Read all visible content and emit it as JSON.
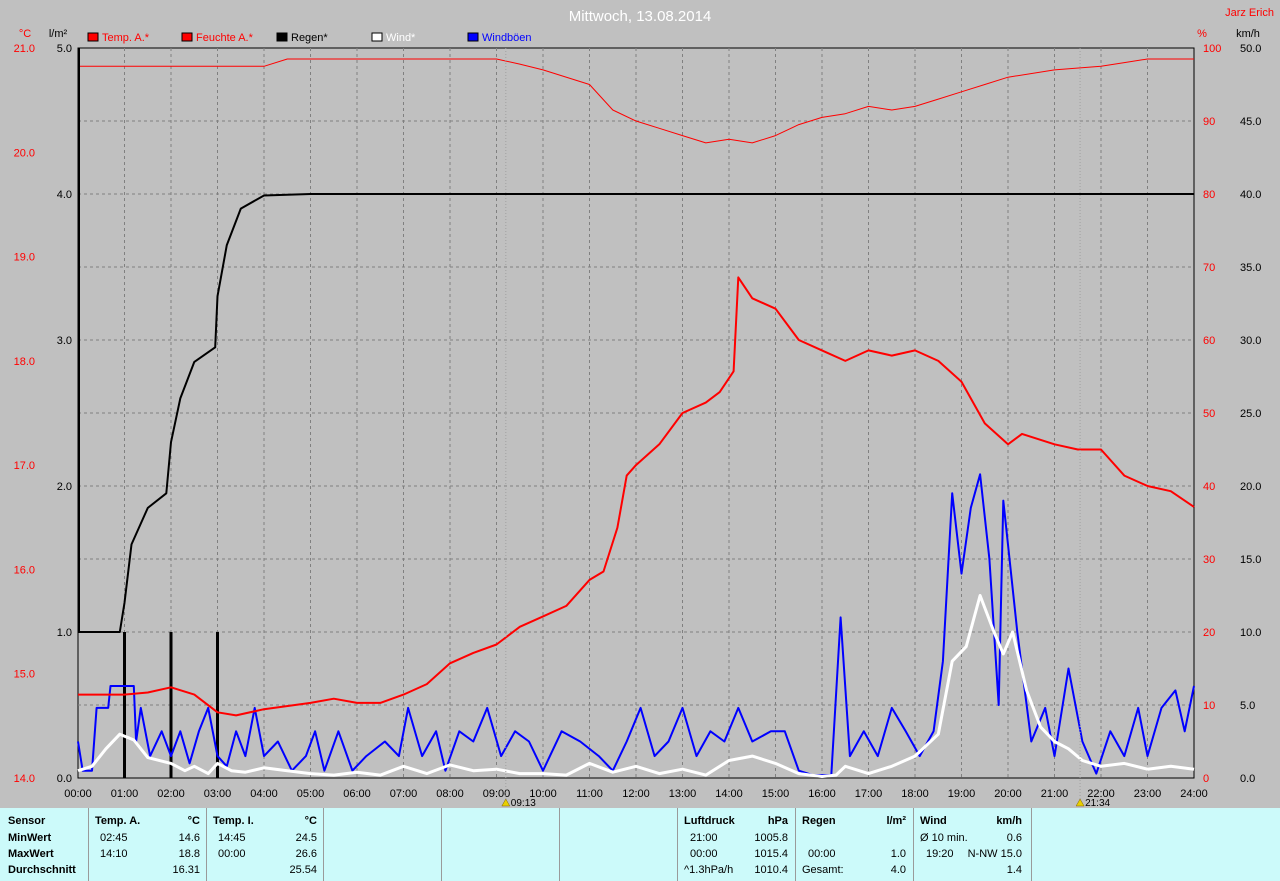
{
  "colors": {
    "background": "#c0c0c0",
    "temp": "#ff0000",
    "humidity": "#ff0000",
    "rain": "#000000",
    "wind": "#ffffff",
    "gust": "#0000ff",
    "grid": "#808080",
    "panel": "#ccfafa"
  },
  "chart_data": {
    "type": "line",
    "title": "Mittwoch, 13.08.2014",
    "author": "Jarz Erich",
    "xlim": [
      0,
      24
    ],
    "x_ticks": [
      "00:00",
      "01:00",
      "02:00",
      "03:00",
      "04:00",
      "05:00",
      "06:00",
      "07:00",
      "08:00",
      "09:00",
      "10:00",
      "11:00",
      "12:00",
      "13:00",
      "14:00",
      "15:00",
      "16:00",
      "17:00",
      "18:00",
      "19:00",
      "20:00",
      "21:00",
      "22:00",
      "23:00",
      "24:00"
    ],
    "markers": [
      {
        "hour": 9.2,
        "label": "09:13",
        "icon": "sunrise-icon"
      },
      {
        "hour": 21.55,
        "label": "21:34",
        "icon": "sunset-icon"
      }
    ],
    "axes": {
      "temp": {
        "unit": "°C",
        "range": [
          14.0,
          21.0
        ],
        "ticks": [
          "14.0",
          "15.0",
          "16.0",
          "17.0",
          "18.0",
          "19.0",
          "20.0",
          "21.0"
        ]
      },
      "rain": {
        "unit": "l/m²",
        "range": [
          0,
          5.0
        ],
        "ticks": [
          "0.0",
          "1.0",
          "2.0",
          "3.0",
          "4.0",
          "5.0"
        ]
      },
      "humidity": {
        "unit": "%",
        "range": [
          0,
          100
        ],
        "ticks": [
          "0",
          "10",
          "20",
          "30",
          "40",
          "50",
          "60",
          "70",
          "80",
          "90",
          "100"
        ]
      },
      "wind": {
        "unit": "km/h",
        "range": [
          0,
          50
        ],
        "ticks": [
          "0.0",
          "5.0",
          "10.0",
          "15.0",
          "20.0",
          "25.0",
          "30.0",
          "35.0",
          "40.0",
          "45.0",
          "50.0"
        ]
      }
    },
    "legend": [
      "Temp. A.*",
      "Feuchte A.*",
      "Regen*",
      "Wind*",
      "Windböen"
    ],
    "series": [
      {
        "name": "Temp. A.*",
        "axis": "temp",
        "points": [
          [
            0,
            14.8
          ],
          [
            1,
            14.8
          ],
          [
            1.5,
            14.82
          ],
          [
            2,
            14.87
          ],
          [
            2.5,
            14.8
          ],
          [
            3,
            14.63
          ],
          [
            3.4,
            14.6
          ],
          [
            4,
            14.66
          ],
          [
            5,
            14.72
          ],
          [
            5.5,
            14.76
          ],
          [
            6,
            14.72
          ],
          [
            6.5,
            14.72
          ],
          [
            7,
            14.8
          ],
          [
            7.5,
            14.9
          ],
          [
            8,
            15.1
          ],
          [
            8.5,
            15.2
          ],
          [
            9,
            15.28
          ],
          [
            9.5,
            15.45
          ],
          [
            10,
            15.55
          ],
          [
            10.5,
            15.65
          ],
          [
            11,
            15.9
          ],
          [
            11.3,
            15.98
          ],
          [
            11.6,
            16.4
          ],
          [
            11.8,
            16.9
          ],
          [
            12,
            17.0
          ],
          [
            12.5,
            17.2
          ],
          [
            13,
            17.5
          ],
          [
            13.5,
            17.6
          ],
          [
            13.8,
            17.7
          ],
          [
            14.1,
            17.9
          ],
          [
            14.2,
            18.8
          ],
          [
            14.5,
            18.6
          ],
          [
            15,
            18.5
          ],
          [
            15.5,
            18.2
          ],
          [
            16,
            18.1
          ],
          [
            16.5,
            18.0
          ],
          [
            17,
            18.1
          ],
          [
            17.5,
            18.05
          ],
          [
            18,
            18.1
          ],
          [
            18.5,
            18.0
          ],
          [
            19,
            17.8
          ],
          [
            19.5,
            17.4
          ],
          [
            20,
            17.2
          ],
          [
            20.3,
            17.3
          ],
          [
            21,
            17.2
          ],
          [
            21.5,
            17.15
          ],
          [
            22,
            17.15
          ],
          [
            22.5,
            16.9
          ],
          [
            23,
            16.8
          ],
          [
            23.5,
            16.75
          ],
          [
            24,
            16.6
          ]
        ]
      },
      {
        "name": "Feuchte A.*",
        "axis": "humidity",
        "points": [
          [
            0,
            97.5
          ],
          [
            1,
            97.5
          ],
          [
            2,
            97.5
          ],
          [
            3,
            97.5
          ],
          [
            4,
            97.5
          ],
          [
            4.5,
            98.5
          ],
          [
            5,
            98.5
          ],
          [
            9,
            98.5
          ],
          [
            9.5,
            97.8
          ],
          [
            10,
            97
          ],
          [
            11,
            95
          ],
          [
            11.5,
            91.5
          ],
          [
            12,
            90
          ],
          [
            12.5,
            89
          ],
          [
            13,
            88
          ],
          [
            13.5,
            87
          ],
          [
            14,
            87.5
          ],
          [
            14.5,
            87
          ],
          [
            15,
            88
          ],
          [
            15.5,
            89.5
          ],
          [
            16,
            90.5
          ],
          [
            16.5,
            91
          ],
          [
            17,
            92
          ],
          [
            17.5,
            91.5
          ],
          [
            18,
            92
          ],
          [
            18.5,
            93
          ],
          [
            19,
            94
          ],
          [
            19.5,
            95
          ],
          [
            20,
            96
          ],
          [
            21,
            97
          ],
          [
            22,
            97.5
          ],
          [
            22.5,
            98
          ],
          [
            23,
            98.5
          ],
          [
            24,
            98.5
          ]
        ]
      },
      {
        "name": "Regen*",
        "axis": "rain",
        "points": [
          [
            0,
            1.0
          ],
          [
            0.9,
            1.0
          ],
          [
            1.0,
            1.2
          ],
          [
            1.15,
            1.6
          ],
          [
            1.5,
            1.85
          ],
          [
            1.9,
            1.95
          ],
          [
            2.0,
            2.3
          ],
          [
            2.2,
            2.6
          ],
          [
            2.5,
            2.85
          ],
          [
            2.95,
            2.95
          ],
          [
            3.0,
            3.3
          ],
          [
            3.2,
            3.65
          ],
          [
            3.5,
            3.9
          ],
          [
            4,
            3.99
          ],
          [
            5,
            4.0
          ],
          [
            24,
            4.0
          ]
        ]
      },
      {
        "name": "Wind*",
        "axis": "wind",
        "points": [
          [
            0,
            0.5
          ],
          [
            0.3,
            0.8
          ],
          [
            0.6,
            2.0
          ],
          [
            0.9,
            3.0
          ],
          [
            1.2,
            2.6
          ],
          [
            1.5,
            1.4
          ],
          [
            2,
            1.0
          ],
          [
            2.3,
            0.5
          ],
          [
            2.5,
            0.8
          ],
          [
            2.8,
            0.3
          ],
          [
            3,
            1.0
          ],
          [
            3.3,
            0.5
          ],
          [
            3.6,
            0.4
          ],
          [
            4,
            0.7
          ],
          [
            4.5,
            0.5
          ],
          [
            5,
            0.3
          ],
          [
            5.5,
            0.2
          ],
          [
            6,
            0.4
          ],
          [
            6.5,
            0.2
          ],
          [
            7,
            0.8
          ],
          [
            7.5,
            0.3
          ],
          [
            8,
            0.9
          ],
          [
            8.5,
            0.5
          ],
          [
            9,
            0.6
          ],
          [
            9.5,
            0.3
          ],
          [
            10,
            0.3
          ],
          [
            10.5,
            0.2
          ],
          [
            11,
            1.0
          ],
          [
            11.5,
            0.4
          ],
          [
            12,
            0.8
          ],
          [
            12.5,
            0.3
          ],
          [
            13,
            0.6
          ],
          [
            13.5,
            0.2
          ],
          [
            14,
            1.2
          ],
          [
            14.5,
            1.5
          ],
          [
            15,
            1.0
          ],
          [
            15.5,
            0.3
          ],
          [
            16,
            0.1
          ],
          [
            16.3,
            0.2
          ],
          [
            16.5,
            0.8
          ],
          [
            17,
            0.3
          ],
          [
            17.5,
            0.8
          ],
          [
            18,
            1.5
          ],
          [
            18.5,
            3.0
          ],
          [
            18.8,
            8.0
          ],
          [
            19.1,
            9.0
          ],
          [
            19.4,
            12.5
          ],
          [
            19.7,
            10
          ],
          [
            19.9,
            8.5
          ],
          [
            20.1,
            10
          ],
          [
            20.4,
            6.0
          ],
          [
            20.7,
            3.5
          ],
          [
            21,
            2.5
          ],
          [
            21.3,
            2.0
          ],
          [
            21.6,
            1.2
          ],
          [
            22,
            0.8
          ],
          [
            22.5,
            1.0
          ],
          [
            23,
            0.6
          ],
          [
            23.5,
            0.8
          ],
          [
            24,
            0.6
          ]
        ]
      },
      {
        "name": "Windböen",
        "axis": "wind",
        "points": [
          [
            0,
            2.5
          ],
          [
            0.1,
            0.5
          ],
          [
            0.3,
            0.5
          ],
          [
            0.4,
            4.8
          ],
          [
            0.65,
            4.8
          ],
          [
            0.7,
            6.3
          ],
          [
            1.2,
            6.3
          ],
          [
            1.25,
            2.5
          ],
          [
            1.35,
            4.8
          ],
          [
            1.55,
            1.5
          ],
          [
            1.8,
            3.2
          ],
          [
            2.0,
            1.5
          ],
          [
            2.2,
            3.2
          ],
          [
            2.4,
            1.0
          ],
          [
            2.6,
            3.2
          ],
          [
            2.8,
            4.8
          ],
          [
            3.0,
            1.5
          ],
          [
            3.2,
            0.8
          ],
          [
            3.4,
            3.2
          ],
          [
            3.6,
            1.5
          ],
          [
            3.8,
            4.8
          ],
          [
            4.0,
            1.5
          ],
          [
            4.3,
            2.5
          ],
          [
            4.6,
            0.5
          ],
          [
            4.9,
            1.5
          ],
          [
            5.1,
            3.2
          ],
          [
            5.3,
            0.5
          ],
          [
            5.6,
            3.2
          ],
          [
            5.9,
            0.5
          ],
          [
            6.2,
            1.5
          ],
          [
            6.6,
            2.5
          ],
          [
            6.9,
            1.5
          ],
          [
            7.1,
            4.8
          ],
          [
            7.4,
            1.5
          ],
          [
            7.7,
            3.2
          ],
          [
            7.9,
            0.5
          ],
          [
            8.2,
            3.2
          ],
          [
            8.5,
            2.5
          ],
          [
            8.8,
            4.8
          ],
          [
            9.1,
            1.5
          ],
          [
            9.4,
            3.2
          ],
          [
            9.7,
            2.5
          ],
          [
            10.0,
            0.5
          ],
          [
            10.4,
            3.2
          ],
          [
            10.8,
            2.5
          ],
          [
            11.2,
            1.5
          ],
          [
            11.5,
            0.5
          ],
          [
            11.8,
            2.5
          ],
          [
            12.1,
            4.8
          ],
          [
            12.4,
            1.5
          ],
          [
            12.7,
            2.5
          ],
          [
            13.0,
            4.8
          ],
          [
            13.3,
            1.5
          ],
          [
            13.6,
            3.2
          ],
          [
            13.9,
            2.5
          ],
          [
            14.2,
            4.8
          ],
          [
            14.5,
            2.5
          ],
          [
            14.9,
            3.2
          ],
          [
            15.2,
            3.2
          ],
          [
            15.5,
            0.5
          ],
          [
            15.8,
            0.2
          ],
          [
            16.2,
            0.2
          ],
          [
            16.4,
            11.0
          ],
          [
            16.6,
            1.5
          ],
          [
            16.9,
            3.2
          ],
          [
            17.2,
            1.5
          ],
          [
            17.5,
            4.8
          ],
          [
            17.8,
            3.2
          ],
          [
            18.1,
            1.5
          ],
          [
            18.4,
            3.2
          ],
          [
            18.6,
            8.0
          ],
          [
            18.8,
            19.5
          ],
          [
            19.0,
            14.0
          ],
          [
            19.2,
            18.5
          ],
          [
            19.4,
            20.8
          ],
          [
            19.6,
            15.0
          ],
          [
            19.8,
            5.0
          ],
          [
            19.9,
            19.0
          ],
          [
            20.2,
            10.0
          ],
          [
            20.5,
            2.5
          ],
          [
            20.8,
            4.8
          ],
          [
            21.0,
            1.5
          ],
          [
            21.3,
            7.5
          ],
          [
            21.6,
            2.5
          ],
          [
            21.9,
            0.3
          ],
          [
            22.2,
            3.2
          ],
          [
            22.5,
            1.5
          ],
          [
            22.8,
            4.8
          ],
          [
            23.0,
            1.5
          ],
          [
            23.3,
            4.8
          ],
          [
            23.6,
            6.0
          ],
          [
            23.8,
            3.2
          ],
          [
            24,
            6.3
          ]
        ]
      },
      {
        "name": "Regen-Balken",
        "axis": "rain",
        "bars": [
          {
            "hour": 1.0,
            "value": 1.0
          },
          {
            "hour": 2.0,
            "value": 1.0
          },
          {
            "hour": 3.0,
            "value": 1.0
          }
        ]
      }
    ]
  },
  "panel": {
    "sensor": {
      "label": "Sensor",
      "rows": [
        "MinWert",
        "MaxWert",
        "Durchschnitt"
      ]
    },
    "temp_a": {
      "label": "Temp. A.",
      "unit": "°C",
      "min_time": "02:45",
      "min": "14.6",
      "max_time": "14:10",
      "max": "18.8",
      "avg": "16.31"
    },
    "temp_i": {
      "label": "Temp. I.",
      "unit": "°C",
      "min_time": "14:45",
      "min": "24.5",
      "max_time": "00:00",
      "max": "26.6",
      "avg": "25.54"
    },
    "pressure": {
      "label": "Luftdruck",
      "unit": "hPa",
      "r1_time": "21:00",
      "r1": "1005.8",
      "r2_time": "00:00",
      "r2": "1015.4",
      "r3_label": "^1.3hPa/h",
      "r3": "1010.4"
    },
    "rain": {
      "label": "Regen",
      "unit": "l/m²",
      "r2_time": "00:00",
      "r2": "1.0",
      "r3_label": "Gesamt:",
      "r3": "4.0"
    },
    "wind": {
      "label": "Wind",
      "unit": "km/h",
      "r1_label": "Ø 10 min.",
      "r1": "0.6",
      "r2_time": "19:20",
      "r2": "N-NW 15.0",
      "r3": "1.4"
    }
  }
}
